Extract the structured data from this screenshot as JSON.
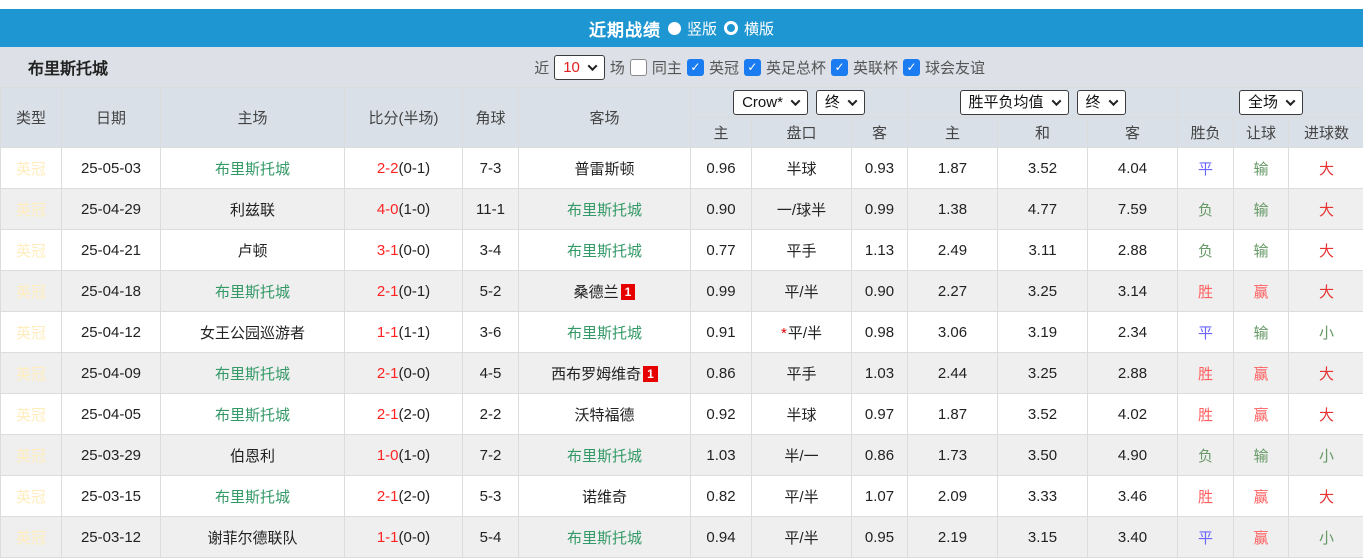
{
  "titlebar": {
    "title": "近期战绩",
    "radio_vertical": "竖版",
    "radio_horizontal": "横版",
    "vertical_selected": true
  },
  "filter_bar": {
    "team": "布里斯托城",
    "near_label": "近",
    "matches_count": "10",
    "matches_label": "场",
    "same_home_label": "同主",
    "same_home_checked": false,
    "league_filters": [
      "英冠",
      "英足总杯",
      "英联杯",
      "球会友谊"
    ]
  },
  "icons": {
    "checkbox_check": "✓"
  },
  "table": {
    "dropdowns": {
      "company": "Crow*",
      "company_final": "终",
      "mean": "胜平负均值",
      "mean_final": "终",
      "fulltime": "全场"
    },
    "headers": {
      "type": "类型",
      "date": "日期",
      "home": "主场",
      "score": "比分(半场)",
      "corners": "角球",
      "away": "客场",
      "odds_home": "主",
      "odds_handicap": "盘口",
      "odds_away": "客",
      "mean_home": "主",
      "mean_draw": "和",
      "mean_away": "客",
      "result": "胜负",
      "handicap_result": "让球",
      "goals": "进球数"
    },
    "rows": [
      {
        "league": "英冠",
        "date": "25-05-03",
        "home": "布里斯托城",
        "home_highlight": true,
        "home_card": null,
        "score": "2-2",
        "half": "(0-1)",
        "corners": "7-3",
        "away": "普雷斯顿",
        "away_highlight": false,
        "away_card": null,
        "odds_home": "0.96",
        "handicap": "半球",
        "handicap_star": false,
        "odds_away": "0.93",
        "mean_home": "1.87",
        "mean_draw": "3.52",
        "mean_away": "4.04",
        "result": {
          "text": "平",
          "type": "draw"
        },
        "handicap_result": {
          "text": "输",
          "type": "loss"
        },
        "goals": {
          "text": "大",
          "type": "big"
        }
      },
      {
        "league": "英冠",
        "date": "25-04-29",
        "home": "利兹联",
        "home_highlight": false,
        "home_card": null,
        "score": "4-0",
        "half": "(1-0)",
        "corners": "11-1",
        "away": "布里斯托城",
        "away_highlight": true,
        "away_card": null,
        "odds_home": "0.90",
        "handicap": "一/球半",
        "handicap_star": false,
        "odds_away": "0.99",
        "mean_home": "1.38",
        "mean_draw": "4.77",
        "mean_away": "7.59",
        "result": {
          "text": "负",
          "type": "loss"
        },
        "handicap_result": {
          "text": "输",
          "type": "loss"
        },
        "goals": {
          "text": "大",
          "type": "big"
        }
      },
      {
        "league": "英冠",
        "date": "25-04-21",
        "home": "卢顿",
        "home_highlight": false,
        "home_card": null,
        "score": "3-1",
        "half": "(0-0)",
        "corners": "3-4",
        "away": "布里斯托城",
        "away_highlight": true,
        "away_card": null,
        "odds_home": "0.77",
        "handicap": "平手",
        "handicap_star": false,
        "odds_away": "1.13",
        "mean_home": "2.49",
        "mean_draw": "3.11",
        "mean_away": "2.88",
        "result": {
          "text": "负",
          "type": "loss"
        },
        "handicap_result": {
          "text": "输",
          "type": "loss"
        },
        "goals": {
          "text": "大",
          "type": "big"
        }
      },
      {
        "league": "英冠",
        "date": "25-04-18",
        "home": "布里斯托城",
        "home_highlight": true,
        "home_card": null,
        "score": "2-1",
        "half": "(0-1)",
        "corners": "5-2",
        "away": "桑德兰",
        "away_highlight": false,
        "away_card": "1",
        "odds_home": "0.99",
        "handicap": "平/半",
        "handicap_star": false,
        "odds_away": "0.90",
        "mean_home": "2.27",
        "mean_draw": "3.25",
        "mean_away": "3.14",
        "result": {
          "text": "胜",
          "type": "win"
        },
        "handicap_result": {
          "text": "赢",
          "type": "win"
        },
        "goals": {
          "text": "大",
          "type": "big"
        }
      },
      {
        "league": "英冠",
        "date": "25-04-12",
        "home": "女王公园巡游者",
        "home_highlight": false,
        "home_card": null,
        "score": "1-1",
        "half": "(1-1)",
        "corners": "3-6",
        "away": "布里斯托城",
        "away_highlight": true,
        "away_card": null,
        "odds_home": "0.91",
        "handicap": "平/半",
        "handicap_star": true,
        "odds_away": "0.98",
        "mean_home": "3.06",
        "mean_draw": "3.19",
        "mean_away": "2.34",
        "result": {
          "text": "平",
          "type": "draw"
        },
        "handicap_result": {
          "text": "输",
          "type": "loss"
        },
        "goals": {
          "text": "小",
          "type": "small"
        }
      },
      {
        "league": "英冠",
        "date": "25-04-09",
        "home": "布里斯托城",
        "home_highlight": true,
        "home_card": null,
        "score": "2-1",
        "half": "(0-0)",
        "corners": "4-5",
        "away": "西布罗姆维奇",
        "away_highlight": false,
        "away_card": "1",
        "odds_home": "0.86",
        "handicap": "平手",
        "handicap_star": false,
        "odds_away": "1.03",
        "mean_home": "2.44",
        "mean_draw": "3.25",
        "mean_away": "2.88",
        "result": {
          "text": "胜",
          "type": "win"
        },
        "handicap_result": {
          "text": "赢",
          "type": "win"
        },
        "goals": {
          "text": "大",
          "type": "big"
        }
      },
      {
        "league": "英冠",
        "date": "25-04-05",
        "home": "布里斯托城",
        "home_highlight": true,
        "home_card": null,
        "score": "2-1",
        "half": "(2-0)",
        "corners": "2-2",
        "away": "沃特福德",
        "away_highlight": false,
        "away_card": null,
        "odds_home": "0.92",
        "handicap": "半球",
        "handicap_star": false,
        "odds_away": "0.97",
        "mean_home": "1.87",
        "mean_draw": "3.52",
        "mean_away": "4.02",
        "result": {
          "text": "胜",
          "type": "win"
        },
        "handicap_result": {
          "text": "赢",
          "type": "win"
        },
        "goals": {
          "text": "大",
          "type": "big"
        }
      },
      {
        "league": "英冠",
        "date": "25-03-29",
        "home": "伯恩利",
        "home_highlight": false,
        "home_card": null,
        "score": "1-0",
        "half": "(1-0)",
        "corners": "7-2",
        "away": "布里斯托城",
        "away_highlight": true,
        "away_card": null,
        "odds_home": "1.03",
        "handicap": "半/一",
        "handicap_star": false,
        "odds_away": "0.86",
        "mean_home": "1.73",
        "mean_draw": "3.50",
        "mean_away": "4.90",
        "result": {
          "text": "负",
          "type": "loss"
        },
        "handicap_result": {
          "text": "输",
          "type": "loss"
        },
        "goals": {
          "text": "小",
          "type": "small"
        }
      },
      {
        "league": "英冠",
        "date": "25-03-15",
        "home": "布里斯托城",
        "home_highlight": true,
        "home_card": null,
        "score": "2-1",
        "half": "(2-0)",
        "corners": "5-3",
        "away": "诺维奇",
        "away_highlight": false,
        "away_card": null,
        "odds_home": "0.82",
        "handicap": "平/半",
        "handicap_star": false,
        "odds_away": "1.07",
        "mean_home": "2.09",
        "mean_draw": "3.33",
        "mean_away": "3.46",
        "result": {
          "text": "胜",
          "type": "win"
        },
        "handicap_result": {
          "text": "赢",
          "type": "win"
        },
        "goals": {
          "text": "大",
          "type": "big"
        }
      },
      {
        "league": "英冠",
        "date": "25-03-12",
        "home": "谢菲尔德联队",
        "home_highlight": false,
        "home_card": null,
        "score": "1-1",
        "half": "(0-0)",
        "corners": "5-4",
        "away": "布里斯托城",
        "away_highlight": true,
        "away_card": null,
        "odds_home": "0.94",
        "handicap": "平/半",
        "handicap_star": false,
        "odds_away": "0.95",
        "mean_home": "2.19",
        "mean_draw": "3.15",
        "mean_away": "3.40",
        "result": {
          "text": "平",
          "type": "draw"
        },
        "handicap_result": {
          "text": "赢",
          "type": "win"
        },
        "goals": {
          "text": "小",
          "type": "small"
        }
      }
    ]
  },
  "colors": {
    "titlebar_bg": "#1e96d2",
    "subheader_bg": "#dde1e7",
    "header_bg": "#d9e0e8",
    "row_alt_bg": "#efefef",
    "handicap_col_bg": "#faf5ec",
    "mean_col_bg": "#eaf2f9",
    "league_badge_bg": "#c63a10",
    "league_badge_text": "#ffedbe",
    "team_highlight": "#339966",
    "score_red": "#ff2222",
    "card_bg": "#e60000",
    "checkbox_blue": "#1a7cf0",
    "select_count_text": "#e02020",
    "win": "#ff6060",
    "draw": "#6a65ff",
    "loss": "#669966",
    "big": "#e73333",
    "small": "#669966"
  }
}
